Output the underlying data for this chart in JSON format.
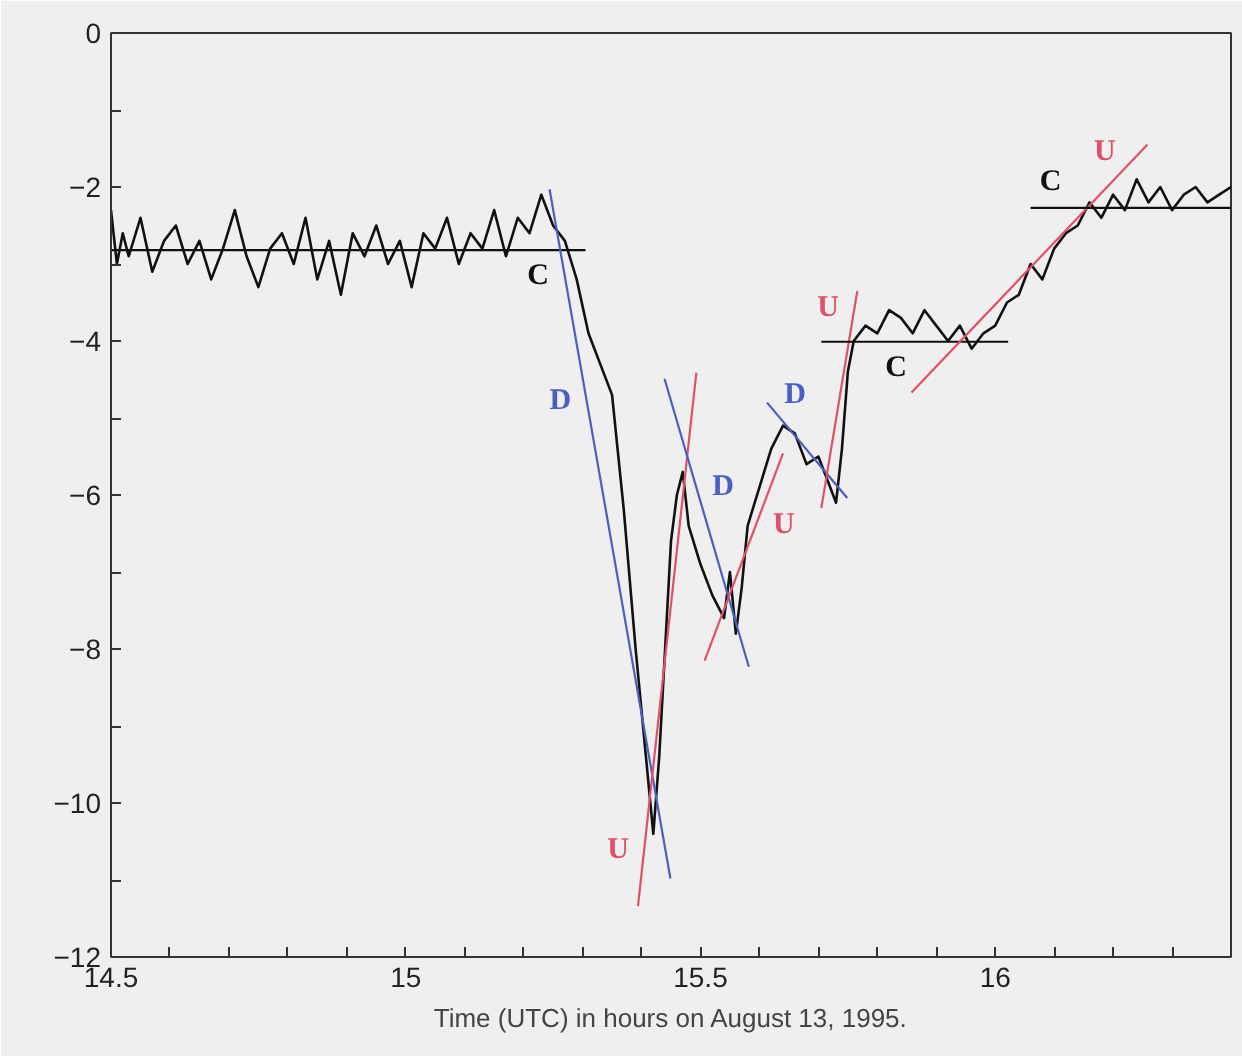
{
  "chart_data": {
    "type": "line",
    "xlabel": "Time (UTC) in hours on August 13, 1995.",
    "xlim": [
      14.5,
      16.4
    ],
    "ylim": [
      -12,
      0
    ],
    "xticks": [
      14.5,
      {
        "value": 14.6,
        "label": null
      },
      {
        "value": 14.7,
        "label": null
      },
      {
        "value": 14.8,
        "label": null
      },
      {
        "value": 14.9,
        "label": null
      },
      15,
      {
        "value": 15.1,
        "label": null
      },
      {
        "value": 15.2,
        "label": null
      },
      {
        "value": 15.3,
        "label": null
      },
      {
        "value": 15.4,
        "label": null
      },
      15.5,
      {
        "value": 15.6,
        "label": null
      },
      {
        "value": 15.7,
        "label": null
      },
      {
        "value": 15.8,
        "label": null
      },
      {
        "value": 15.9,
        "label": null
      },
      16,
      {
        "value": 16.1,
        "label": null
      },
      {
        "value": 16.2,
        "label": null
      },
      {
        "value": 16.3,
        "label": null
      }
    ],
    "yticks": [
      -12,
      {
        "value": -11,
        "label": null
      },
      -10,
      {
        "value": -9,
        "label": null
      },
      -8,
      {
        "value": -7,
        "label": null
      },
      -6,
      {
        "value": -5,
        "label": null
      },
      -4,
      {
        "value": -3,
        "label": null
      },
      -2,
      {
        "value": -1,
        "label": null
      },
      0
    ],
    "grid": false,
    "legend": false,
    "marker": "none",
    "line_style": "solid",
    "series": [
      {
        "color": "#111111",
        "x": [
          14.5,
          14.51,
          14.52,
          14.53,
          14.55,
          14.57,
          14.59,
          14.61,
          14.63,
          14.65,
          14.67,
          14.69,
          14.71,
          14.73,
          14.75,
          14.77,
          14.79,
          14.81,
          14.83,
          14.85,
          14.87,
          14.89,
          14.91,
          14.93,
          14.95,
          14.97,
          14.99,
          15.01,
          15.03,
          15.05,
          15.07,
          15.09,
          15.11,
          15.13,
          15.15,
          15.17,
          15.19,
          15.21,
          15.23,
          15.25,
          15.27,
          15.29,
          15.31,
          15.33,
          15.35,
          15.37,
          15.39,
          15.41,
          15.42,
          15.43,
          15.44,
          15.45,
          15.46,
          15.47,
          15.48,
          15.5,
          15.52,
          15.54,
          15.55,
          15.56,
          15.57,
          15.58,
          15.6,
          15.62,
          15.64,
          15.66,
          15.68,
          15.7,
          15.72,
          15.73,
          15.74,
          15.75,
          15.76,
          15.78,
          15.8,
          15.82,
          15.84,
          15.86,
          15.88,
          15.9,
          15.92,
          15.94,
          15.96,
          15.98,
          16.0,
          16.02,
          16.04,
          16.06,
          16.08,
          16.1,
          16.12,
          16.14,
          16.16,
          16.18,
          16.2,
          16.22,
          16.24,
          16.26,
          16.28,
          16.3,
          16.32,
          16.34,
          16.36,
          16.38,
          16.4
        ],
        "values": [
          -2.3,
          -3.0,
          -2.6,
          -2.9,
          -2.4,
          -3.1,
          -2.7,
          -2.5,
          -3.0,
          -2.7,
          -3.2,
          -2.8,
          -2.3,
          -2.9,
          -3.3,
          -2.8,
          -2.6,
          -3.0,
          -2.4,
          -3.2,
          -2.7,
          -3.4,
          -2.6,
          -2.9,
          -2.5,
          -3.0,
          -2.7,
          -3.3,
          -2.6,
          -2.8,
          -2.4,
          -3.0,
          -2.6,
          -2.8,
          -2.3,
          -2.9,
          -2.4,
          -2.6,
          -2.1,
          -2.5,
          -2.7,
          -3.2,
          -3.9,
          -4.3,
          -4.7,
          -6.2,
          -8.0,
          -9.6,
          -10.4,
          -9.4,
          -8.0,
          -6.6,
          -6.0,
          -5.7,
          -6.4,
          -6.9,
          -7.3,
          -7.6,
          -7.0,
          -7.8,
          -7.2,
          -6.4,
          -5.9,
          -5.4,
          -5.1,
          -5.2,
          -5.6,
          -5.5,
          -5.9,
          -6.1,
          -5.4,
          -4.4,
          -4.0,
          -3.8,
          -3.9,
          -3.6,
          -3.7,
          -3.9,
          -3.6,
          -3.8,
          -4.0,
          -3.8,
          -4.1,
          -3.9,
          -3.8,
          -3.5,
          -3.4,
          -3.0,
          -3.2,
          -2.8,
          -2.6,
          -2.5,
          -2.2,
          -2.4,
          -2.1,
          -2.3,
          -1.9,
          -2.2,
          -2.0,
          -2.3,
          -2.1,
          -2.0,
          -2.2,
          -2.1,
          -2.0
        ]
      },
      {
        "name": "C",
        "color": "#111111",
        "x": [
          14.5,
          15.305
        ],
        "values": [
          -2.82,
          -2.82
        ]
      },
      {
        "name": "D",
        "color": "#4a5fc0",
        "x": [
          15.244,
          15.449
        ],
        "values": [
          -2.03,
          -10.98
        ]
      },
      {
        "name": "U",
        "color": "#e0506a",
        "x": [
          15.394,
          15.493
        ],
        "values": [
          -11.34,
          -4.41
        ]
      },
      {
        "name": "D",
        "color": "#4a5fc0",
        "x": [
          15.439,
          15.582
        ],
        "values": [
          -4.49,
          -8.23
        ]
      },
      {
        "name": "U",
        "color": "#e0506a",
        "x": [
          15.507,
          15.64
        ],
        "values": [
          -8.15,
          -5.46
        ]
      },
      {
        "name": "D",
        "color": "#4a5fc0",
        "x": [
          15.613,
          15.749
        ],
        "values": [
          -4.8,
          -6.04
        ]
      },
      {
        "name": "U",
        "color": "#e0506a",
        "x": [
          15.705,
          15.766
        ],
        "values": [
          -6.17,
          -3.35
        ]
      },
      {
        "name": "C",
        "color": "#111111",
        "x": [
          15.705,
          16.022
        ],
        "values": [
          -4.01,
          -4.01
        ]
      },
      {
        "name": "U",
        "color": "#e0506a",
        "x": [
          15.858,
          16.258
        ],
        "values": [
          -4.67,
          -1.45
        ]
      },
      {
        "name": "C",
        "color": "#111111",
        "x": [
          16.06,
          16.4
        ],
        "values": [
          -2.27,
          -2.27
        ]
      }
    ]
  }
}
